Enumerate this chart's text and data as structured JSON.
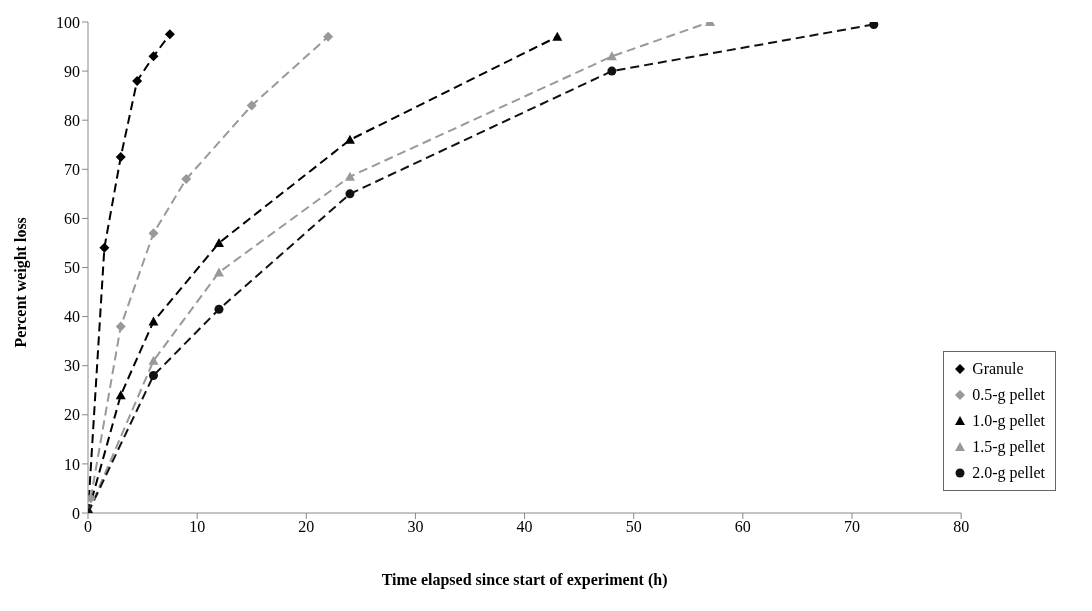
{
  "chart_data": {
    "type": "line",
    "xlabel": "Time elapsed since start of experiment (h)",
    "ylabel": "Percent weight loss",
    "xlim": [
      0,
      80
    ],
    "ylim": [
      0,
      100
    ],
    "xticks": [
      0,
      10,
      20,
      30,
      40,
      50,
      60,
      70,
      80
    ],
    "yticks": [
      0,
      10,
      20,
      30,
      40,
      50,
      60,
      70,
      80,
      90,
      100
    ],
    "grid": false,
    "legend": "bottom right",
    "line_style": "dashed",
    "series": [
      {
        "name": "Granule",
        "color": "#000000",
        "marker": "diamond",
        "x": [
          0,
          1.5,
          3,
          4.5,
          6,
          7.5
        ],
        "values": [
          0,
          54,
          72.5,
          88,
          93,
          97.5
        ]
      },
      {
        "name": "0.5-g pellet",
        "color": "#999999",
        "marker": "diamond",
        "x": [
          0.25,
          3,
          6,
          9,
          15,
          22
        ],
        "values": [
          3,
          38,
          57,
          68,
          83,
          97
        ]
      },
      {
        "name": "1.0-g pellet",
        "color": "#000000",
        "marker": "triangle",
        "x": [
          0,
          3,
          6,
          12,
          24,
          43
        ],
        "values": [
          0,
          24,
          39,
          55,
          76,
          97
        ]
      },
      {
        "name": "1.5-g pellet",
        "color": "#999999",
        "marker": "triangle",
        "x": [
          0,
          6,
          12,
          24,
          48,
          57
        ],
        "values": [
          0,
          31,
          49,
          68.5,
          93,
          100
        ]
      },
      {
        "name": "2.0-g pellet",
        "color": "#111111",
        "marker": "circle",
        "x": [
          0,
          6,
          12,
          24,
          48,
          72
        ],
        "values": [
          0,
          28,
          41.5,
          65,
          90,
          99.5
        ]
      }
    ]
  }
}
